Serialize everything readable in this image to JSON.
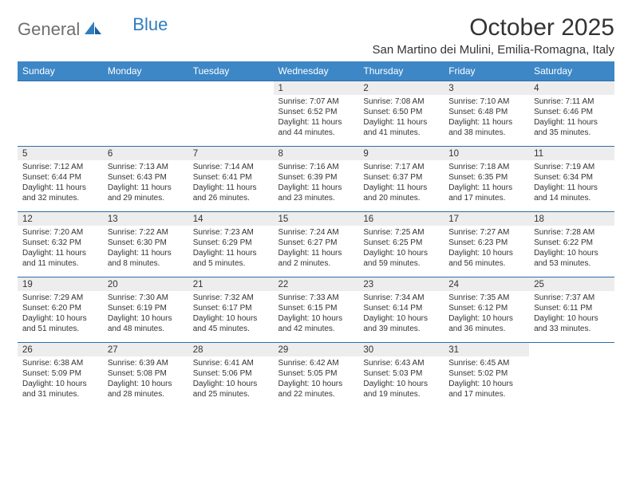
{
  "brand": {
    "word1": "General",
    "word2": "Blue"
  },
  "title": "October 2025",
  "location": "San Martino dei Mulini, Emilia-Romagna, Italy",
  "colors": {
    "header_bg": "#3d87c7",
    "rule": "#2f6da8",
    "daynum_bg": "#ededed",
    "text": "#333333",
    "brand_grey": "#6f6f6f",
    "brand_blue": "#2f7dc0"
  },
  "day_labels": [
    "Sunday",
    "Monday",
    "Tuesday",
    "Wednesday",
    "Thursday",
    "Friday",
    "Saturday"
  ],
  "weeks": [
    [
      null,
      null,
      null,
      {
        "n": "1",
        "sunrise": "7:07 AM",
        "sunset": "6:52 PM",
        "dl": "11 hours and 44 minutes."
      },
      {
        "n": "2",
        "sunrise": "7:08 AM",
        "sunset": "6:50 PM",
        "dl": "11 hours and 41 minutes."
      },
      {
        "n": "3",
        "sunrise": "7:10 AM",
        "sunset": "6:48 PM",
        "dl": "11 hours and 38 minutes."
      },
      {
        "n": "4",
        "sunrise": "7:11 AM",
        "sunset": "6:46 PM",
        "dl": "11 hours and 35 minutes."
      }
    ],
    [
      {
        "n": "5",
        "sunrise": "7:12 AM",
        "sunset": "6:44 PM",
        "dl": "11 hours and 32 minutes."
      },
      {
        "n": "6",
        "sunrise": "7:13 AM",
        "sunset": "6:43 PM",
        "dl": "11 hours and 29 minutes."
      },
      {
        "n": "7",
        "sunrise": "7:14 AM",
        "sunset": "6:41 PM",
        "dl": "11 hours and 26 minutes."
      },
      {
        "n": "8",
        "sunrise": "7:16 AM",
        "sunset": "6:39 PM",
        "dl": "11 hours and 23 minutes."
      },
      {
        "n": "9",
        "sunrise": "7:17 AM",
        "sunset": "6:37 PM",
        "dl": "11 hours and 20 minutes."
      },
      {
        "n": "10",
        "sunrise": "7:18 AM",
        "sunset": "6:35 PM",
        "dl": "11 hours and 17 minutes."
      },
      {
        "n": "11",
        "sunrise": "7:19 AM",
        "sunset": "6:34 PM",
        "dl": "11 hours and 14 minutes."
      }
    ],
    [
      {
        "n": "12",
        "sunrise": "7:20 AM",
        "sunset": "6:32 PM",
        "dl": "11 hours and 11 minutes."
      },
      {
        "n": "13",
        "sunrise": "7:22 AM",
        "sunset": "6:30 PM",
        "dl": "11 hours and 8 minutes."
      },
      {
        "n": "14",
        "sunrise": "7:23 AM",
        "sunset": "6:29 PM",
        "dl": "11 hours and 5 minutes."
      },
      {
        "n": "15",
        "sunrise": "7:24 AM",
        "sunset": "6:27 PM",
        "dl": "11 hours and 2 minutes."
      },
      {
        "n": "16",
        "sunrise": "7:25 AM",
        "sunset": "6:25 PM",
        "dl": "10 hours and 59 minutes."
      },
      {
        "n": "17",
        "sunrise": "7:27 AM",
        "sunset": "6:23 PM",
        "dl": "10 hours and 56 minutes."
      },
      {
        "n": "18",
        "sunrise": "7:28 AM",
        "sunset": "6:22 PM",
        "dl": "10 hours and 53 minutes."
      }
    ],
    [
      {
        "n": "19",
        "sunrise": "7:29 AM",
        "sunset": "6:20 PM",
        "dl": "10 hours and 51 minutes."
      },
      {
        "n": "20",
        "sunrise": "7:30 AM",
        "sunset": "6:19 PM",
        "dl": "10 hours and 48 minutes."
      },
      {
        "n": "21",
        "sunrise": "7:32 AM",
        "sunset": "6:17 PM",
        "dl": "10 hours and 45 minutes."
      },
      {
        "n": "22",
        "sunrise": "7:33 AM",
        "sunset": "6:15 PM",
        "dl": "10 hours and 42 minutes."
      },
      {
        "n": "23",
        "sunrise": "7:34 AM",
        "sunset": "6:14 PM",
        "dl": "10 hours and 39 minutes."
      },
      {
        "n": "24",
        "sunrise": "7:35 AM",
        "sunset": "6:12 PM",
        "dl": "10 hours and 36 minutes."
      },
      {
        "n": "25",
        "sunrise": "7:37 AM",
        "sunset": "6:11 PM",
        "dl": "10 hours and 33 minutes."
      }
    ],
    [
      {
        "n": "26",
        "sunrise": "6:38 AM",
        "sunset": "5:09 PM",
        "dl": "10 hours and 31 minutes."
      },
      {
        "n": "27",
        "sunrise": "6:39 AM",
        "sunset": "5:08 PM",
        "dl": "10 hours and 28 minutes."
      },
      {
        "n": "28",
        "sunrise": "6:41 AM",
        "sunset": "5:06 PM",
        "dl": "10 hours and 25 minutes."
      },
      {
        "n": "29",
        "sunrise": "6:42 AM",
        "sunset": "5:05 PM",
        "dl": "10 hours and 22 minutes."
      },
      {
        "n": "30",
        "sunrise": "6:43 AM",
        "sunset": "5:03 PM",
        "dl": "10 hours and 19 minutes."
      },
      {
        "n": "31",
        "sunrise": "6:45 AM",
        "sunset": "5:02 PM",
        "dl": "10 hours and 17 minutes."
      },
      null
    ]
  ]
}
